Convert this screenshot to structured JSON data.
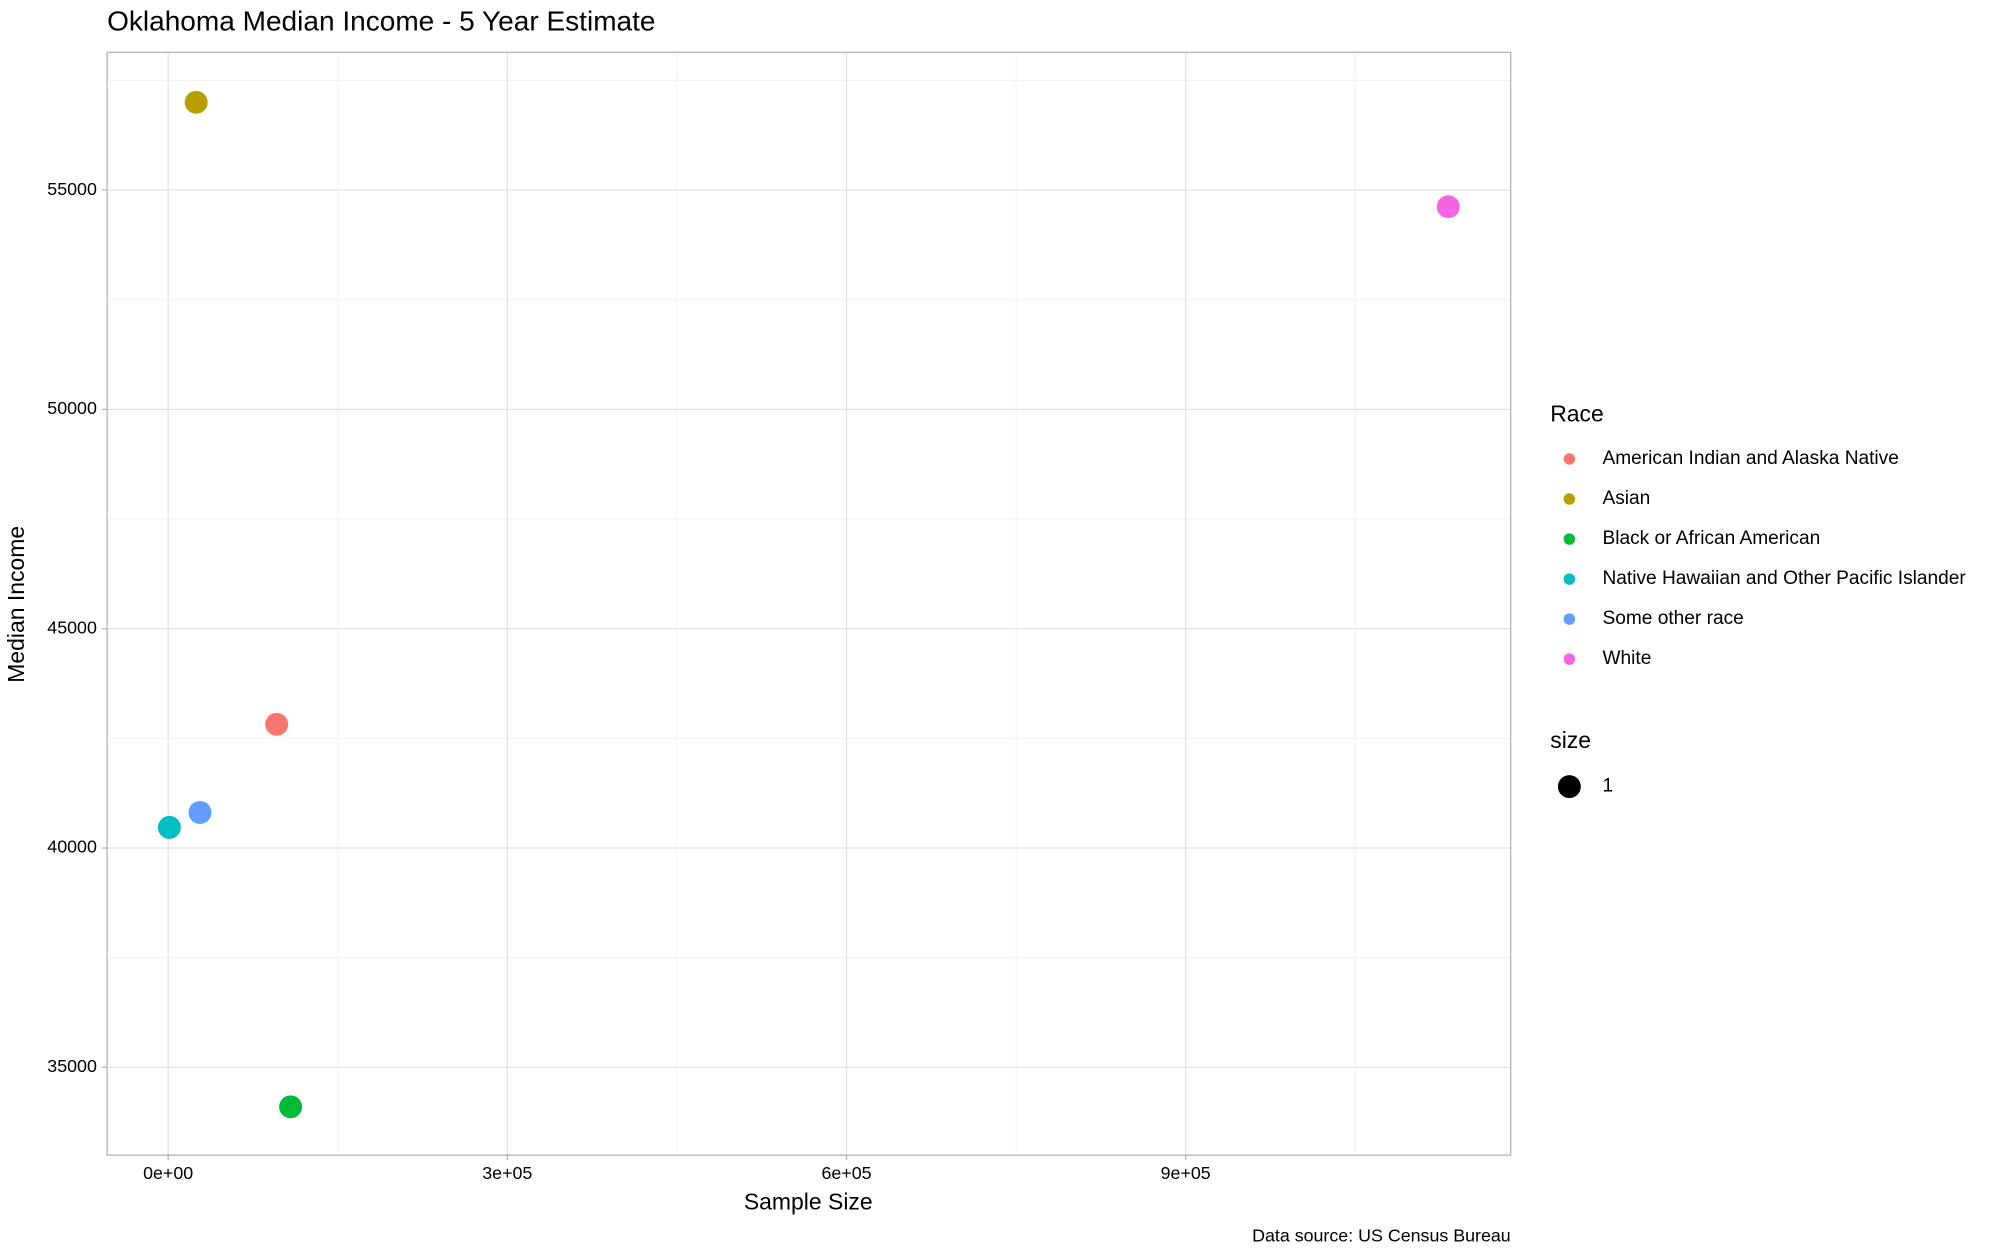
{
  "chart_data": {
    "type": "scatter",
    "title": "Oklahoma Median Income - 5 Year Estimate",
    "x_label": "Sample Size",
    "y_label": "Median Income",
    "caption": "Data source: US Census Bureau",
    "legend_title": "Race",
    "size_legend": {
      "title": "size",
      "labels": [
        1
      ]
    },
    "series": [
      {
        "name": "American Indian and Alaska Native",
        "color": "#F8766D",
        "x": [
          96000
        ],
        "values": [
          42820
        ]
      },
      {
        "name": "Asian",
        "color": "#B79F00",
        "x": [
          24800
        ],
        "values": [
          57000
        ]
      },
      {
        "name": "Black or African American",
        "color": "#00BA38",
        "x": [
          108300
        ],
        "values": [
          34100
        ]
      },
      {
        "name": "Native Hawaiian and Other Pacific Islander",
        "color": "#00BFC4",
        "x": [
          1100
        ],
        "values": [
          40470
        ]
      },
      {
        "name": "Some other race",
        "color": "#619CFF",
        "x": [
          28200
        ],
        "values": [
          40810
        ]
      },
      {
        "name": "White",
        "color": "#F564E3",
        "x": [
          1132300
        ],
        "values": [
          54620
        ]
      }
    ],
    "xlim": [
      -54000,
      1187500
    ],
    "ylim": [
      33000,
      58140
    ],
    "xticks": [
      {
        "value": 0,
        "label": "0e+00"
      },
      {
        "value": 300000,
        "label": "3e+05"
      },
      {
        "value": 600000,
        "label": "6e+05"
      },
      {
        "value": 900000,
        "label": "9e+05"
      }
    ],
    "yticks": [
      35000,
      40000,
      45000,
      50000,
      55000
    ],
    "xminorticks": [
      150000,
      450000,
      750000,
      1050000
    ],
    "yminorticks": [
      37500,
      42500,
      47500,
      52500,
      57500
    ],
    "grid": true,
    "legend_position": "right"
  }
}
